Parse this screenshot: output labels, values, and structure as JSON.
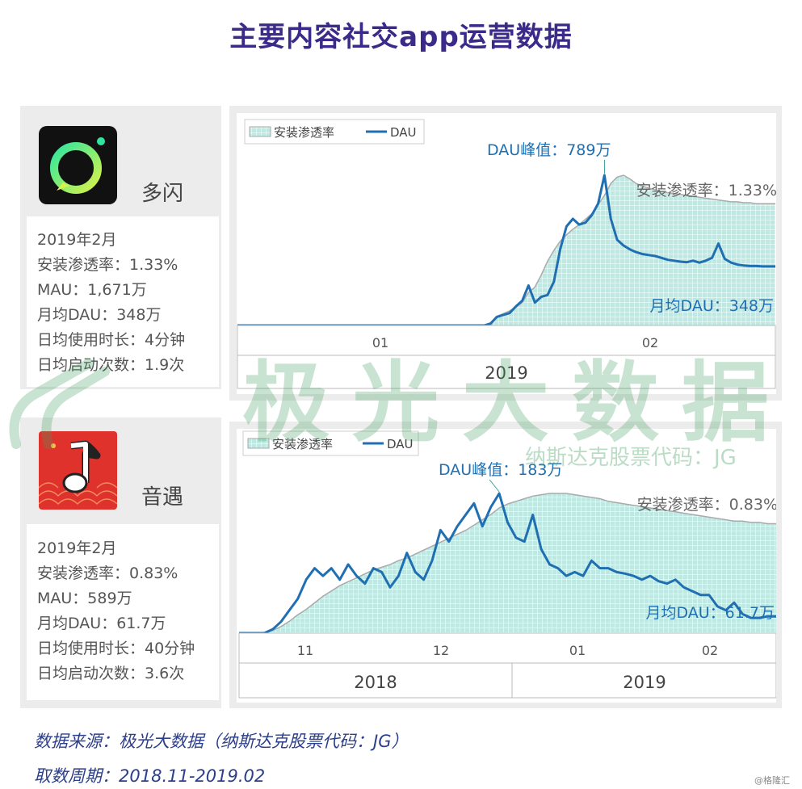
{
  "title": "主要内容社交app运营数据",
  "apps": [
    {
      "name": "多闪",
      "period": "2019年2月",
      "penetration": "安装渗透率：1.33%",
      "mau": "MAU：1,671万",
      "avg_dau": "月均DAU：348万",
      "daily_duration": "日均使用时长：4分钟",
      "daily_launches": "日均启动次数：1.9次",
      "icon": "duoshan-logo-icon",
      "icon_color": "#1dd9a0"
    },
    {
      "name": "音遇",
      "period": "2019年2月",
      "penetration": "安装渗透率：0.83%",
      "mau": "MAU：589万",
      "avg_dau": "月均DAU：61.7万",
      "daily_duration": "日均使用时长：40分钟",
      "daily_launches": "日均启动次数：3.6次",
      "icon": "yinyu-music-note-icon",
      "icon_color": "#e0322c"
    }
  ],
  "watermark": {
    "main": "极光大数据",
    "sub": "纳斯达克股票代码：JG"
  },
  "footer": {
    "source": "数据来源：极光大数据（纳斯达克股票代码：JG）",
    "period": "取数周期：2018.11-2019.02"
  },
  "credit": "@格隆汇",
  "chart_data": [
    {
      "type": "area",
      "legend": [
        "安装渗透率",
        "DAU"
      ],
      "legend_position": "top-left",
      "annotations": {
        "peak": "DAU峰值：789万",
        "penetration": "安装渗透率：1.33%",
        "avg": "月均DAU：348万"
      },
      "x_ticks": [
        "01",
        "02"
      ],
      "years": [
        "2019"
      ],
      "colors": {
        "dau": "#1f6fb2",
        "penetration_fill": "#bfe8e2",
        "penetration_edge": "#aaaaaa"
      },
      "series": [
        {
          "name": "安装渗透率",
          "values": [
            0,
            0,
            0,
            0,
            0,
            0,
            0,
            0,
            0,
            0,
            0,
            0,
            0,
            0,
            0,
            0,
            0,
            0,
            0,
            0,
            0,
            0,
            0,
            0,
            0,
            0,
            0,
            0,
            0,
            0,
            0,
            0,
            0,
            0,
            0,
            0,
            0,
            0,
            0,
            0,
            0,
            0.1,
            0.13,
            0.16,
            0.2,
            0.25,
            0.36,
            0.42,
            0.55,
            0.7,
            0.82,
            0.92,
            0.99,
            1.05,
            1.1,
            1.16,
            1.22,
            1.32,
            1.42,
            1.55,
            1.62,
            1.64,
            1.6,
            1.55,
            1.52,
            1.5,
            1.48,
            1.46,
            1.45,
            1.44,
            1.43,
            1.42,
            1.41,
            1.4,
            1.39,
            1.38,
            1.37,
            1.36,
            1.35,
            1.35,
            1.34,
            1.34,
            1.33,
            1.33,
            1.33,
            1.33
          ]
        },
        {
          "name": "DAU",
          "values": [
            0,
            0,
            0,
            0,
            0,
            0,
            0,
            0,
            0,
            0,
            0,
            0,
            0,
            0,
            0,
            0,
            0,
            0,
            0,
            0,
            0,
            0,
            0,
            0,
            0,
            0,
            0,
            0,
            0,
            0,
            0,
            0,
            0,
            0,
            0,
            0,
            0,
            0,
            0,
            0,
            10,
            45,
            55,
            65,
            100,
            130,
            210,
            120,
            150,
            160,
            230,
            400,
            520,
            560,
            530,
            540,
            580,
            640,
            789,
            560,
            450,
            420,
            400,
            385,
            375,
            370,
            365,
            355,
            345,
            340,
            335,
            332,
            340,
            330,
            340,
            355,
            430,
            350,
            330,
            320,
            315,
            312,
            312,
            310,
            310,
            310
          ]
        }
      ]
    },
    {
      "type": "area",
      "legend": [
        "安装渗透率",
        "DAU"
      ],
      "legend_position": "top-left",
      "annotations": {
        "peak": "DAU峰值：183万",
        "penetration": "安装渗透率：0.83%",
        "avg": "月均DAU：61.7万"
      },
      "x_ticks": [
        "11",
        "12",
        "01",
        "02"
      ],
      "years": [
        "2018",
        "2019"
      ],
      "colors": {
        "dau": "#1f6fb2",
        "penetration_fill": "#bfe8e2",
        "penetration_edge": "#aaaaaa"
      },
      "series": [
        {
          "name": "安装渗透率",
          "values": [
            0,
            0,
            0,
            0,
            0.02,
            0.05,
            0.09,
            0.14,
            0.18,
            0.23,
            0.28,
            0.32,
            0.36,
            0.39,
            0.42,
            0.45,
            0.48,
            0.5,
            0.52,
            0.55,
            0.57,
            0.6,
            0.63,
            0.66,
            0.69,
            0.72,
            0.75,
            0.78,
            0.82,
            0.86,
            0.9,
            0.95,
            0.98,
            1.0,
            1.02,
            1.04,
            1.05,
            1.06,
            1.06,
            1.06,
            1.05,
            1.04,
            1.03,
            1.02,
            1.0,
            0.99,
            0.98,
            0.97,
            0.96,
            0.95,
            0.94,
            0.93,
            0.92,
            0.91,
            0.9,
            0.89,
            0.88,
            0.87,
            0.86,
            0.85,
            0.85,
            0.84,
            0.84,
            0.83,
            0.83
          ]
        },
        {
          "name": "DAU",
          "values": [
            0,
            0,
            0,
            0,
            5,
            15,
            30,
            45,
            70,
            85,
            75,
            85,
            70,
            90,
            75,
            65,
            85,
            80,
            60,
            75,
            105,
            80,
            70,
            95,
            135,
            120,
            140,
            155,
            170,
            140,
            165,
            183,
            145,
            125,
            120,
            155,
            110,
            90,
            85,
            75,
            80,
            75,
            95,
            85,
            85,
            80,
            78,
            75,
            70,
            75,
            68,
            65,
            70,
            60,
            55,
            50,
            50,
            35,
            30,
            40,
            25,
            20,
            20,
            22,
            22
          ]
        }
      ]
    }
  ]
}
